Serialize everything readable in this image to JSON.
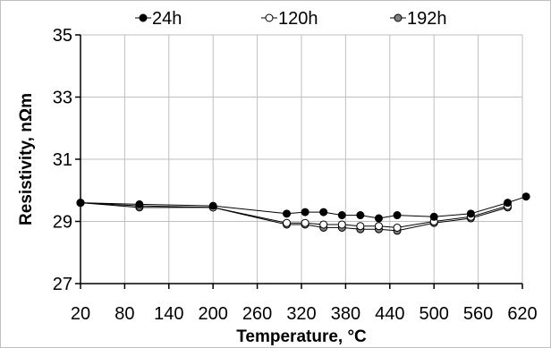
{
  "chart_data": {
    "type": "line",
    "title": "",
    "xlabel": "Temperature, °C",
    "ylabel": "Resistivity, nΩm",
    "xlim": [
      20,
      620
    ],
    "ylim": [
      27,
      35
    ],
    "x_ticks": [
      "20",
      "80",
      "140",
      "200",
      "260",
      "320",
      "380",
      "440",
      "500",
      "560",
      "620"
    ],
    "y_ticks": [
      "27",
      "29",
      "31",
      "33",
      "35"
    ],
    "grid": true,
    "legend_position": "top",
    "series": [
      {
        "name": "24h",
        "color": "#000000",
        "marker_fill": "#000000",
        "x": [
          20,
          100,
          200,
          300,
          325,
          350,
          375,
          400,
          425,
          450,
          500,
          550,
          600,
          625
        ],
        "values": [
          29.6,
          29.55,
          29.5,
          29.25,
          29.3,
          29.3,
          29.2,
          29.2,
          29.1,
          29.2,
          29.15,
          29.25,
          29.6,
          29.8
        ]
      },
      {
        "name": "120h",
        "color": "#000000",
        "marker_fill": "#ffffff",
        "x": [
          20,
          100,
          200,
          300,
          325,
          350,
          375,
          400,
          425,
          450,
          500,
          550,
          600
        ],
        "values": [
          29.6,
          29.5,
          29.45,
          28.95,
          28.95,
          28.9,
          28.9,
          28.85,
          28.85,
          28.8,
          29.0,
          29.15,
          29.5
        ]
      },
      {
        "name": "192h",
        "color": "#000000",
        "marker_fill": "#808080",
        "x": [
          20,
          100,
          200,
          300,
          325,
          350,
          375,
          400,
          425,
          450,
          500,
          550,
          600
        ],
        "values": [
          29.6,
          29.45,
          29.45,
          28.9,
          28.9,
          28.8,
          28.8,
          28.75,
          28.75,
          28.7,
          28.95,
          29.1,
          29.45
        ]
      }
    ]
  }
}
